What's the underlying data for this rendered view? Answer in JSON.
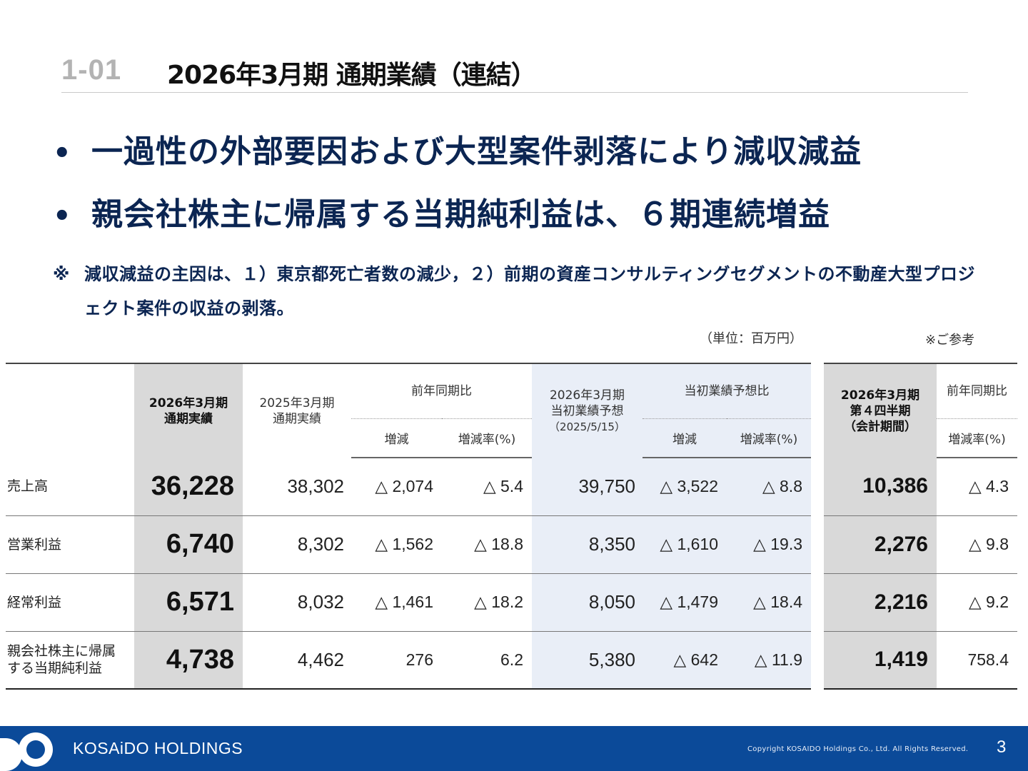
{
  "header": {
    "section_number": "1-01",
    "title": "2026年3月期 通期業績（連結）"
  },
  "bullets": [
    "一過性の外部要因および大型案件剥落により減収減益",
    "親会社株主に帰属する当期純利益は、６期連続増益"
  ],
  "bullet_symbol": "•",
  "note": {
    "mark": "※",
    "text": "減収減益の主因は、１）東京都死亡者数の減少，２）前期の資産コンサルティングセグメントの不動産大型プロジェクト案件の収益の剥落。"
  },
  "unit_label": "（単位：百万円）",
  "reference_label": "※ご参考",
  "table": {
    "col_current_line1": "2026年3月期",
    "col_current_line2": "通期実績",
    "col_prev_line1": "2025年3月期",
    "col_prev_line2": "通期実績",
    "group_yoy": "前年同期比",
    "col_change": "増減",
    "col_change_rate": "増減率(%)",
    "col_forecast_line1": "2026年3月期",
    "col_forecast_line2": "当初業績予想",
    "col_forecast_line3": "（2025/5/15）",
    "group_forecast": "当初業績予想比",
    "col_fc_change": "増減",
    "col_fc_change_rate": "増減率(%)",
    "rows": [
      {
        "label1": "売上高",
        "label2": "",
        "current": "36,228",
        "prev": "38,302",
        "change": "△ 2,074",
        "rate": "△ 5.4",
        "forecast": "39,750",
        "fc_change": "△ 3,522",
        "fc_rate": "△ 8.8"
      },
      {
        "label1": "営業利益",
        "label2": "",
        "current": "6,740",
        "prev": "8,302",
        "change": "△ 1,562",
        "rate": "△ 18.8",
        "forecast": "8,350",
        "fc_change": "△ 1,610",
        "fc_rate": "△ 19.3"
      },
      {
        "label1": "経常利益",
        "label2": "",
        "current": "6,571",
        "prev": "8,032",
        "change": "△ 1,461",
        "rate": "△ 18.2",
        "forecast": "8,050",
        "fc_change": "△ 1,479",
        "fc_rate": "△ 18.4"
      },
      {
        "label1": "親会社株主に帰属",
        "label2": "する当期純利益",
        "current": "4,738",
        "prev": "4,462",
        "change": "276",
        "rate": "6.2",
        "forecast": "5,380",
        "fc_change": "△ 642",
        "fc_rate": "△ 11.9"
      }
    ]
  },
  "side_table": {
    "col_q4_line1": "2026年3月期",
    "col_q4_line2": "第４四半期",
    "col_q4_line3": "（会計期間）",
    "group_yoy": "前年同期比",
    "col_rate": "増減率(%)",
    "rows": [
      {
        "q4": "10,386",
        "rate": "△ 4.3"
      },
      {
        "q4": "2,276",
        "rate": "△ 9.8"
      },
      {
        "q4": "2,216",
        "rate": "△ 9.2"
      },
      {
        "q4": "1,419",
        "rate": "758.4"
      }
    ]
  },
  "footer": {
    "brand": "KOSAiDO HOLDINGS",
    "copyright": "Copyright KOSAIDO Holdings Co., Ltd. All Rights Reserved.",
    "page_number": "3",
    "bg_color": "#0b4a99",
    "logo_icon": "kosaido-logo-icon"
  },
  "colors": {
    "accent_navy": "#0b2552",
    "highlight_gray": "#d9d9d9",
    "highlight_blue": "#e9eef7"
  }
}
